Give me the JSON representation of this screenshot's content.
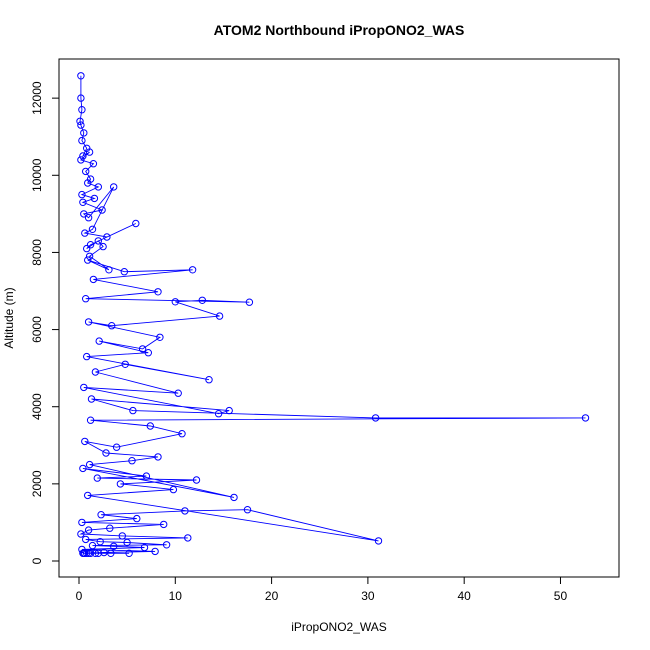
{
  "chart_data": {
    "type": "line",
    "title": "ATOM2 Northbound iPropONO2_WAS",
    "xlabel": "iPropONO2_WAS",
    "ylabel": "Altitude (m)",
    "xlim": [
      0,
      54
    ],
    "ylim": [
      0,
      12600
    ],
    "xticks": [
      0,
      10,
      20,
      30,
      40,
      50
    ],
    "yticks": [
      0,
      2000,
      4000,
      6000,
      8000,
      10000,
      12000
    ],
    "grid": false,
    "legend": "none",
    "series_color": "#0000ff",
    "marker": "open-circle",
    "series": [
      {
        "x": [
          0.2,
          0.2,
          0.3,
          0.1,
          0.2,
          0.5,
          0.3,
          0.8,
          0.4,
          1.1,
          0.2,
          1.5,
          0.7,
          1.2,
          0.9,
          2.0,
          0.3,
          1.6,
          0.4,
          2.4,
          0.5,
          1.0,
          3.6,
          1.4,
          0.6,
          2.9,
          5.9,
          1.2,
          0.8,
          2.0,
          2.5,
          1.1,
          3.1,
          0.9,
          4.7,
          11.8,
          1.5,
          8.2,
          0.7,
          17.7,
          12.8,
          10.0,
          14.6,
          3.4,
          1.0,
          8.4,
          6.6,
          2.1,
          7.2,
          0.8,
          13.5,
          4.8,
          1.7,
          10.3,
          0.5,
          14.5,
          15.6,
          1.3,
          5.6,
          30.8,
          52.6,
          1.2,
          7.4,
          10.7,
          3.9,
          0.6,
          2.8,
          8.2,
          5.5,
          1.1,
          16.1,
          0.4,
          7.0,
          1.9,
          12.2,
          4.3,
          9.8,
          0.9,
          31.1,
          17.5,
          11.0,
          2.3,
          6.0,
          0.3,
          8.8,
          3.2,
          1.0,
          0.2,
          4.5,
          11.3,
          0.7,
          2.2,
          5.0,
          9.1,
          1.4,
          3.6,
          6.8,
          0.3,
          7.9,
          2.6,
          0.4,
          1.7,
          0.5,
          2.0,
          1.0,
          5.2,
          0.6,
          3.3,
          0.8,
          1.2
        ],
        "y": [
          12580,
          12000,
          11700,
          11400,
          11300,
          11100,
          10900,
          10700,
          10500,
          10600,
          10400,
          10300,
          10100,
          9900,
          9800,
          9700,
          9500,
          9400,
          9300,
          9100,
          9000,
          8900,
          9700,
          8600,
          8500,
          8400,
          8750,
          8200,
          8100,
          8300,
          8150,
          7900,
          7550,
          7800,
          7500,
          7550,
          7300,
          6980,
          6800,
          6710,
          6760,
          6720,
          6350,
          6100,
          6200,
          5800,
          5500,
          5700,
          5400,
          5300,
          4700,
          5100,
          4900,
          4350,
          4500,
          3820,
          3900,
          4200,
          3900,
          3710,
          3710,
          3650,
          3500,
          3300,
          2950,
          3100,
          2800,
          2700,
          2600,
          2500,
          1650,
          2400,
          2200,
          2150,
          2100,
          2000,
          1850,
          1700,
          520,
          1330,
          1300,
          1200,
          1100,
          1000,
          950,
          850,
          800,
          700,
          650,
          600,
          560,
          500,
          480,
          420,
          400,
          380,
          350,
          300,
          250,
          220,
          200,
          200,
          200,
          200,
          200,
          200,
          200,
          200,
          200,
          200
        ]
      }
    ]
  }
}
